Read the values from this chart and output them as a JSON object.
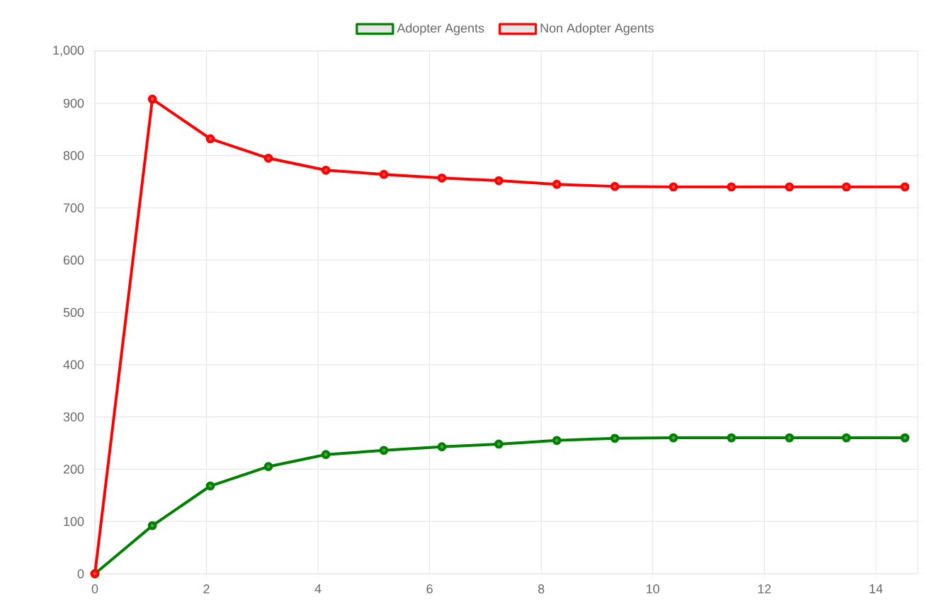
{
  "chart_data": {
    "type": "line",
    "x": [
      0,
      1.03,
      2.07,
      3.11,
      4.14,
      5.18,
      6.22,
      7.24,
      8.28,
      9.32,
      10.37,
      11.41,
      12.45,
      13.47,
      14.52
    ],
    "series": [
      {
        "name": "Adopter Agents",
        "color": "#008000",
        "values": [
          0,
          92,
          168,
          205,
          228,
          236,
          243,
          248,
          255,
          259,
          260,
          260,
          260,
          260,
          260
        ]
      },
      {
        "name": "Non Adopter Agents",
        "color": "#ff0000",
        "values": [
          0,
          908,
          832,
          795,
          772,
          764,
          757,
          752,
          745,
          741,
          740,
          740,
          740,
          740,
          740
        ]
      }
    ],
    "xlim": [
      0,
      14.75
    ],
    "xticks": [
      0,
      2,
      4,
      6,
      8,
      10,
      12,
      14
    ],
    "ylim": [
      0,
      1000
    ],
    "yticks": [
      0,
      100,
      200,
      300,
      400,
      500,
      600,
      700,
      800,
      900,
      {
        "value": 1000,
        "label": "1,000"
      }
    ],
    "grid": true,
    "legend": "top",
    "marker": "circle",
    "line_style": "solid"
  }
}
